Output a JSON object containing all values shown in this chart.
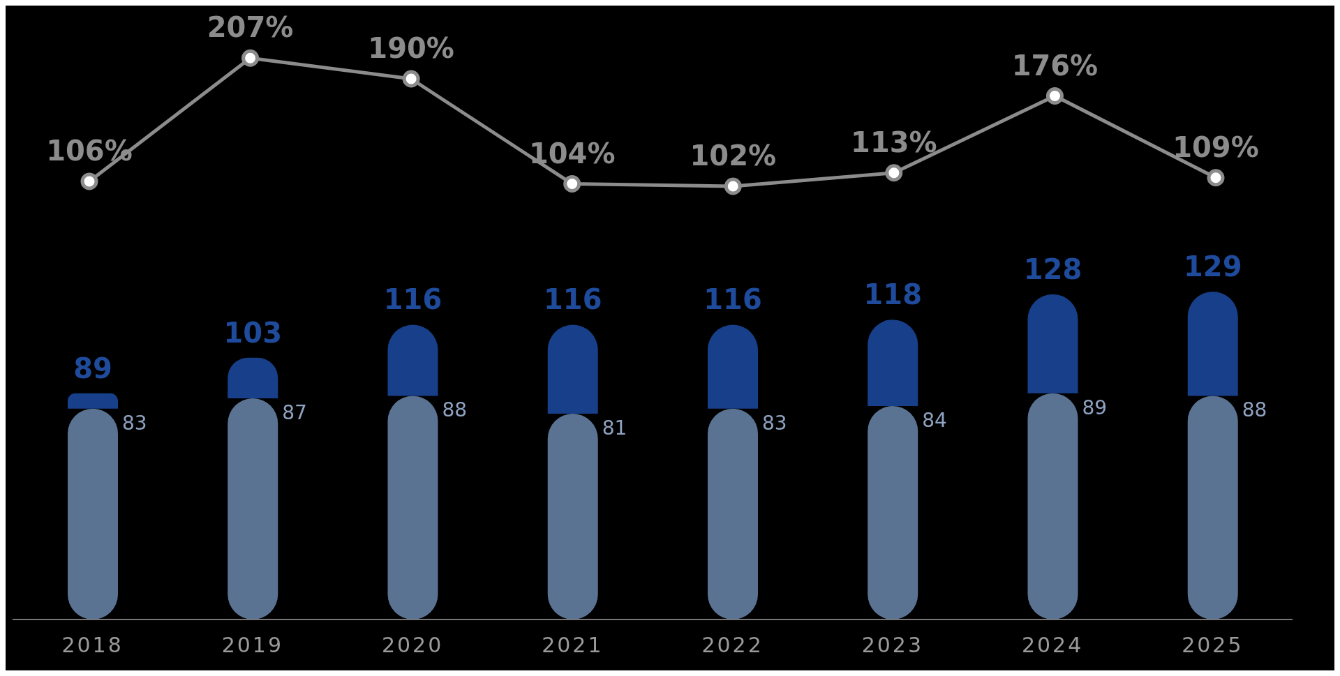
{
  "chart_data": [
    {
      "type": "line",
      "categories": [
        null,
        null,
        null,
        null,
        null,
        null,
        null,
        null
      ],
      "series": [
        {
          "color": "#8c8c8c",
          "values": [
            106,
            207,
            190,
            104,
            102,
            113,
            176,
            109
          ],
          "value_labels": [
            "106%",
            "207%",
            "190%",
            "104%",
            "102%",
            "113%",
            "176%",
            "109%"
          ]
        }
      ],
      "marker": "circle",
      "line_style": "solid"
    },
    {
      "type": "bar",
      "stacked": true,
      "categories": [
        "2018",
        "2019",
        "2020",
        "2021",
        "2022",
        "2023",
        "2024",
        "2025"
      ],
      "tick_labels": "x",
      "series": [
        {
          "color": "#5b7393",
          "values": [
            83,
            87,
            88,
            81,
            83,
            84,
            89,
            88
          ],
          "value_labels": [
            "83",
            "87",
            "88",
            "81",
            "83",
            "84",
            "89",
            "88"
          ]
        },
        {
          "color": "#173f8a",
          "values": [
            6,
            16,
            28,
            35,
            33,
            34,
            39,
            41
          ]
        }
      ],
      "totals": [
        "89",
        "103",
        "116",
        "116",
        "116",
        "118",
        "128",
        "129"
      ]
    }
  ]
}
